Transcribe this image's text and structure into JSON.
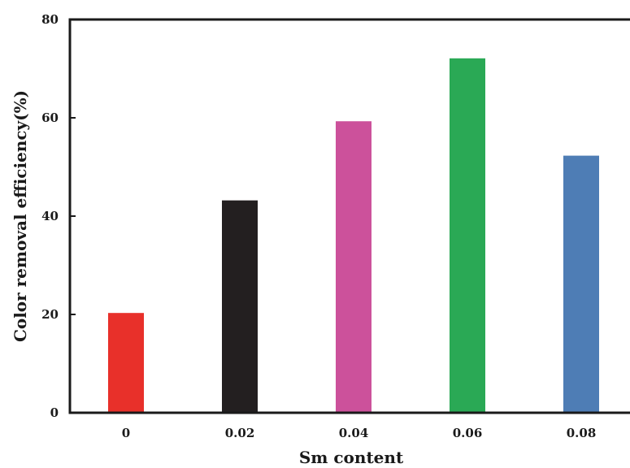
{
  "chart_data": {
    "type": "bar",
    "title": "",
    "xlabel": "Sm content",
    "ylabel": "Color removal efficiency(%)",
    "categories": [
      "0",
      "0.02",
      "0.04",
      "0.06",
      "0.08"
    ],
    "values": [
      20.3,
      43.2,
      59.3,
      72.1,
      52.3
    ],
    "colors": [
      "#e8302a",
      "#231f20",
      "#cc519b",
      "#2aa955",
      "#4e7db5"
    ],
    "ylim": [
      0,
      80
    ],
    "yticks": [
      "0",
      "20",
      "40",
      "60",
      "80"
    ],
    "grid": false,
    "legend": "none"
  }
}
